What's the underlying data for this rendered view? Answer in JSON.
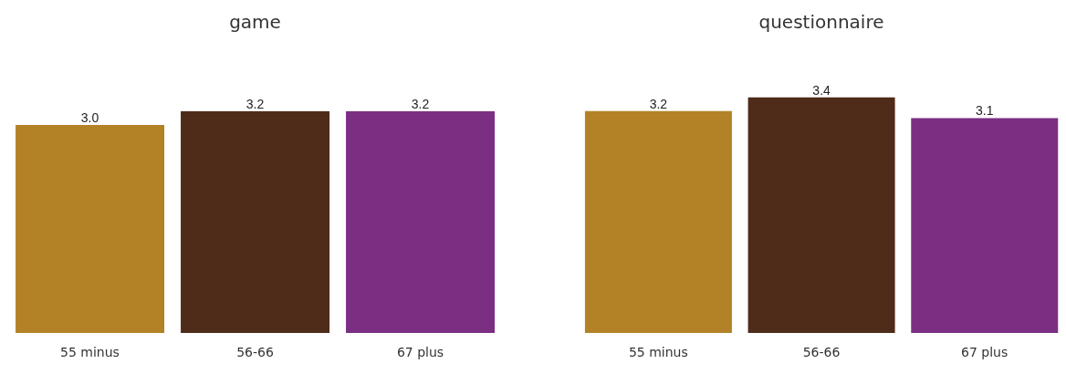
{
  "chart_data": [
    {
      "type": "bar",
      "title": "game",
      "categories": [
        "55 minus",
        "56-66",
        "67 plus"
      ],
      "values": [
        3.0,
        3.2,
        3.2
      ],
      "value_labels": [
        "3.0",
        "3.2",
        "3.2"
      ],
      "colors": [
        "#b38227",
        "#4f2b1a",
        "#7b2f82"
      ],
      "tick_labels": "x",
      "grid": false,
      "legend": false
    },
    {
      "type": "bar",
      "title": "questionnaire",
      "categories": [
        "55 minus",
        "56-66",
        "67 plus"
      ],
      "values": [
        3.2,
        3.4,
        3.1
      ],
      "value_labels": [
        "3.2",
        "3.4",
        "3.1"
      ],
      "colors": [
        "#b38227",
        "#4f2b1a",
        "#7b2f82"
      ],
      "tick_labels": "x",
      "grid": false,
      "legend": false
    }
  ]
}
